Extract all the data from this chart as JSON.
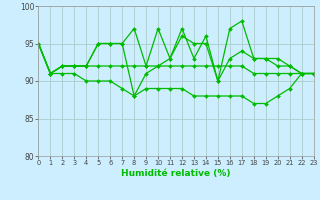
{
  "xlabel": "Humidité relative (%)",
  "background_color": "#cceeff",
  "grid_color": "#aacccc",
  "line_color": "#00bb00",
  "xlim": [
    0,
    23
  ],
  "ylim": [
    80,
    100
  ],
  "yticks": [
    80,
    85,
    90,
    95,
    100
  ],
  "xticks": [
    0,
    1,
    2,
    3,
    4,
    5,
    6,
    7,
    8,
    9,
    10,
    11,
    12,
    13,
    14,
    15,
    16,
    17,
    18,
    19,
    20,
    21,
    22,
    23
  ],
  "series": [
    [
      95,
      91,
      92,
      92,
      92,
      95,
      95,
      95,
      97,
      92,
      97,
      93,
      97,
      93,
      96,
      90,
      97,
      98,
      93,
      93,
      93,
      92,
      91,
      91
    ],
    [
      95,
      91,
      92,
      92,
      92,
      95,
      95,
      95,
      88,
      91,
      92,
      93,
      96,
      95,
      95,
      90,
      93,
      94,
      93,
      93,
      92,
      92,
      91,
      91
    ],
    [
      95,
      91,
      92,
      92,
      92,
      92,
      92,
      92,
      92,
      92,
      92,
      92,
      92,
      92,
      92,
      92,
      92,
      92,
      91,
      91,
      91,
      91,
      91,
      91
    ],
    [
      95,
      91,
      91,
      91,
      90,
      90,
      90,
      89,
      88,
      89,
      89,
      89,
      89,
      88,
      88,
      88,
      88,
      88,
      87,
      87,
      88,
      89,
      91,
      91
    ]
  ]
}
